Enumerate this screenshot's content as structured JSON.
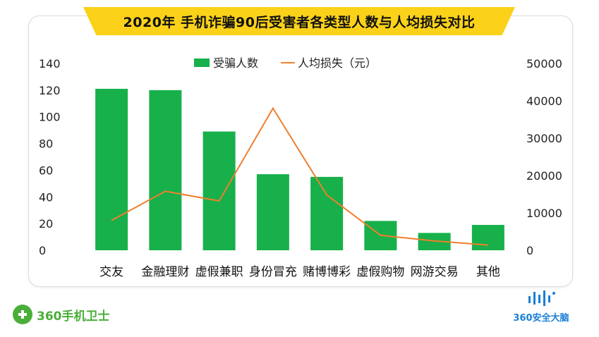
{
  "title": "2020年 手机诈骗90后受害者各类型人数与人均损失对比",
  "chart_data": {
    "type": "bar",
    "categories": [
      "交友",
      "金融理财",
      "虚假兼职",
      "身份冒充",
      "赌博博彩",
      "虚假购物",
      "网游交易",
      "其他"
    ],
    "series": [
      {
        "name": "受骗人数",
        "type": "bar",
        "axis": "left",
        "color": "#17b04b",
        "values": [
          121,
          120,
          89,
          57,
          55,
          22,
          13,
          19
        ]
      },
      {
        "name": "人均损失（元）",
        "type": "line",
        "axis": "right",
        "color": "#f07f2d",
        "values": [
          8000,
          15800,
          13200,
          38000,
          14800,
          4000,
          2500,
          1400
        ]
      }
    ],
    "left_axis": {
      "ticks": [
        "0",
        "20",
        "40",
        "60",
        "80",
        "100",
        "120",
        "140"
      ],
      "ylim": [
        0,
        140
      ]
    },
    "right_axis": {
      "ticks": [
        "0",
        "10000",
        "20000",
        "30000",
        "40000",
        "50000"
      ],
      "ylim": [
        0,
        50000
      ]
    },
    "legend": "top-center",
    "grid": false
  },
  "footer": {
    "left_brand": "360手机卫士",
    "right_brand": "360安全大脑"
  }
}
